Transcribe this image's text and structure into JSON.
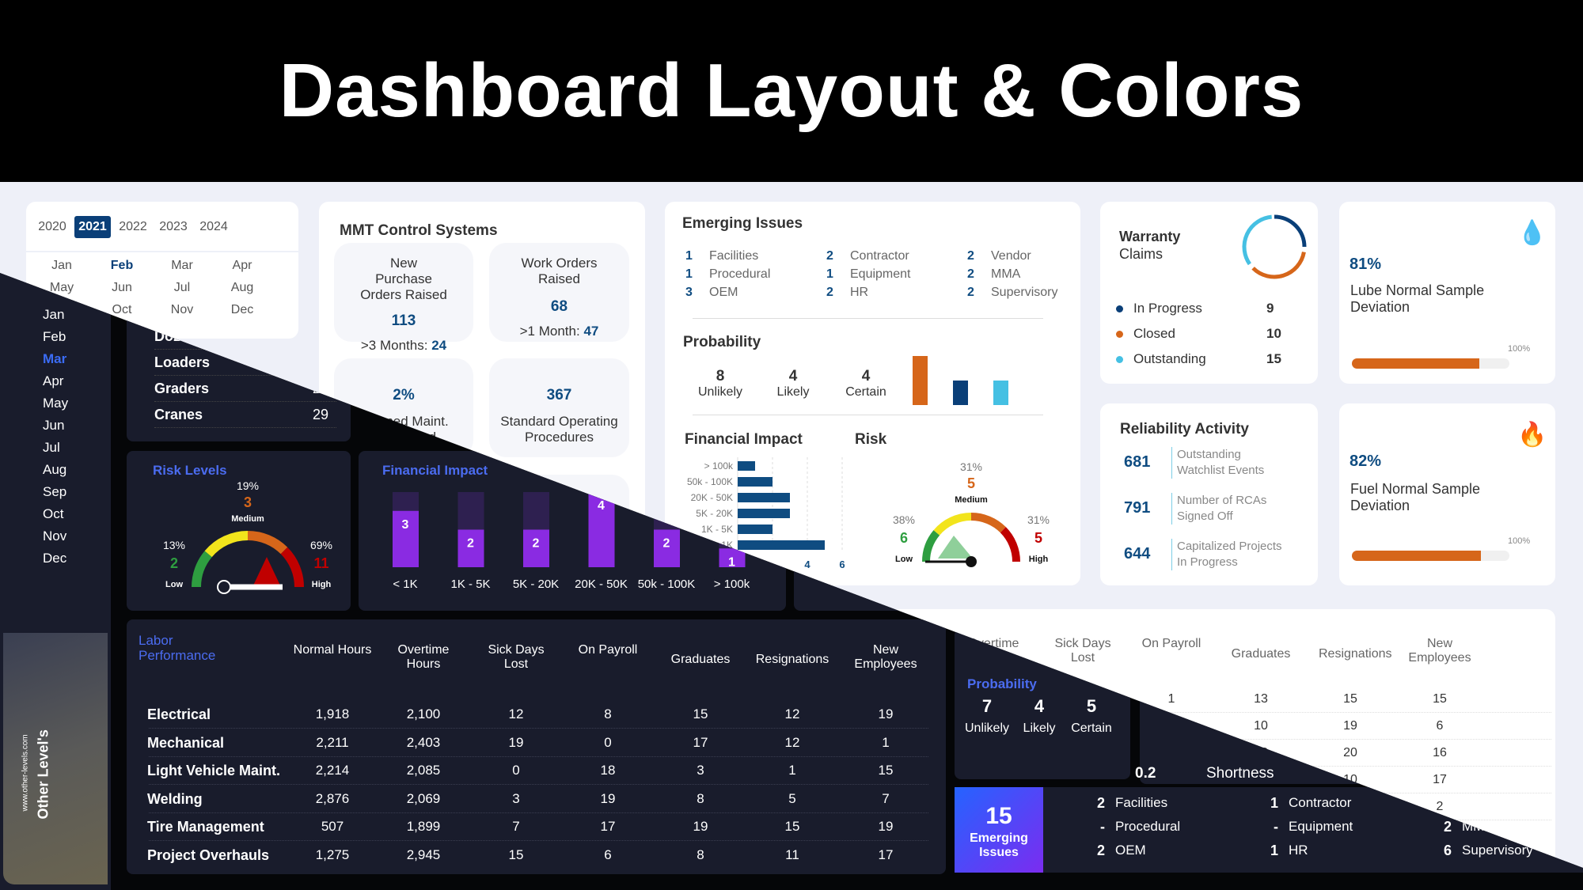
{
  "header": {
    "title": "Dashboard Layout & Colors"
  },
  "light": {
    "years": [
      "2020",
      "2021",
      "2022",
      "2023",
      "2024"
    ],
    "selected_year": "2021",
    "months": [
      "Jan",
      "Feb",
      "Mar",
      "Apr",
      "May",
      "Jun",
      "Jul",
      "Aug",
      "Sep",
      "Oct",
      "Nov",
      "Dec"
    ],
    "selected_month": "Feb",
    "mmt": {
      "title": "MMT Control Systems",
      "po": {
        "label": "New Purchase Orders Raised",
        "value": "113",
        "sub_label": ">3 Months:",
        "sub_value": "24"
      },
      "wo": {
        "label": "Work Orders Raised",
        "value": "68",
        "sub_label": ">1 Month:",
        "sub_value": "47"
      },
      "pm": {
        "value": "2%",
        "label": "Planned Maint. Completed"
      },
      "sop": {
        "value": "367",
        "label": "Standard Operating Procedures"
      }
    },
    "emerging": {
      "title": "Emerging Issues",
      "items": [
        {
          "n": "1",
          "label": "Facilities"
        },
        {
          "n": "1",
          "label": "Procedural"
        },
        {
          "n": "3",
          "label": "OEM"
        },
        {
          "n": "2",
          "label": "Contractor"
        },
        {
          "n": "1",
          "label": "Equipment"
        },
        {
          "n": "2",
          "label": "HR"
        },
        {
          "n": "2",
          "label": "Vendor"
        },
        {
          "n": "2",
          "label": "MMA"
        },
        {
          "n": "2",
          "label": "Supervisory"
        }
      ]
    },
    "probability": {
      "title": "Probability",
      "items": [
        {
          "n": "8",
          "label": "Unlikely",
          "color": "#d6661a"
        },
        {
          "n": "4",
          "label": "Likely",
          "color": "#0a3f78"
        },
        {
          "n": "4",
          "label": "Certain",
          "color": "#45c0e3"
        }
      ]
    },
    "financial": {
      "title": "Financial Impact",
      "categories": [
        "> 100k",
        "50k - 100K",
        "20K - 50K",
        "5K - 20K",
        "1K - 5K",
        "< 1K"
      ],
      "values": [
        1,
        2,
        3,
        3,
        2,
        5
      ],
      "xticks": [
        "4",
        "6"
      ],
      "color": "#0f4c81"
    },
    "risk": {
      "title": "Risk",
      "low": {
        "pct": "38%",
        "n": "6",
        "label": "Low"
      },
      "medium": {
        "pct": "31%",
        "n": "5",
        "label": "Medium"
      },
      "high": {
        "pct": "31%",
        "n": "5",
        "label": "High"
      }
    },
    "warranty": {
      "title": "Warranty",
      "subtitle": "Claims",
      "items": [
        {
          "label": "In Progress",
          "value": "9",
          "color": "#0a3f78"
        },
        {
          "label": "Closed",
          "value": "10",
          "color": "#d6661a"
        },
        {
          "label": "Outstanding",
          "value": "15",
          "color": "#45c0e3"
        }
      ]
    },
    "lube": {
      "value": "81%",
      "label": "Lube Normal Sample Deviation",
      "max": "100%",
      "fill": 0.81
    },
    "fuel": {
      "value": "82%",
      "label": "Fuel Normal Sample Deviation",
      "max": "100%",
      "fill": 0.82
    },
    "reliability": {
      "title": "Reliability Activity",
      "items": [
        {
          "n": "681",
          "label": "Outstanding Watchlist Events"
        },
        {
          "n": "791",
          "label": "Number of RCAs Signed Off"
        },
        {
          "n": "644",
          "label": "Capitalized Projects In Progress"
        }
      ]
    },
    "table": {
      "headers": [
        "Overtime Hours",
        "Sick Days Lost",
        "On Payroll",
        "Graduates",
        "Resignations",
        "New Employees"
      ],
      "rows": [
        [
          "",
          "",
          "1",
          "13",
          "15",
          "15"
        ],
        [
          "",
          "",
          "10",
          "10",
          "19",
          "6"
        ],
        [
          "",
          "",
          "12",
          "12",
          "20",
          "16"
        ],
        [
          "",
          "",
          "",
          "",
          "10",
          "17"
        ],
        [
          "",
          "",
          "",
          "",
          "",
          "2"
        ]
      ]
    }
  },
  "dark": {
    "months": [
      "Jan",
      "Feb",
      "Mar",
      "Apr",
      "May",
      "Jun",
      "Jul",
      "Aug",
      "Sep",
      "Oct",
      "Nov",
      "Dec"
    ],
    "selected_month": "Mar",
    "brand": "Other Level's",
    "brand_url": "www.other-levels.com",
    "equipment": [
      {
        "label": "Dozers",
        "value": ""
      },
      {
        "label": "Loaders",
        "value": ""
      },
      {
        "label": "Graders",
        "value": "29"
      },
      {
        "label": "Cranes",
        "value": "29"
      }
    ],
    "risk": {
      "title": "Risk Levels",
      "low": {
        "pct": "13%",
        "n": "2",
        "label": "Low"
      },
      "medium": {
        "pct": "19%",
        "n": "3",
        "label": "Medium"
      },
      "high": {
        "pct": "69%",
        "n": "11",
        "label": "High"
      }
    },
    "financial": {
      "title": "Financial Impact",
      "categories": [
        "< 1K",
        "1K - 5K",
        "5K - 20K",
        "20K - 50K",
        "50k - 100K",
        "> 100k"
      ],
      "values": [
        3,
        2,
        2,
        4,
        2,
        1
      ],
      "max": 4,
      "color": "#8a2be2",
      "track": "#2e2050"
    },
    "labor": {
      "title": "Labor Performance",
      "headers": [
        "Normal Hours",
        "Overtime Hours",
        "Sick Days Lost",
        "On Payroll",
        "Graduates",
        "Resignations",
        "New Employees"
      ],
      "rows": [
        [
          "Electrical",
          "1,918",
          "2,100",
          "12",
          "8",
          "15",
          "12",
          "19"
        ],
        [
          "Mechanical",
          "2,211",
          "2,403",
          "19",
          "0",
          "17",
          "12",
          "1"
        ],
        [
          "Light Vehicle Maint.",
          "2,214",
          "2,085",
          "0",
          "18",
          "3",
          "1",
          "15"
        ],
        [
          "Welding",
          "2,876",
          "2,069",
          "3",
          "19",
          "8",
          "5",
          "7"
        ],
        [
          "Tire Management",
          "507",
          "1,899",
          "7",
          "17",
          "19",
          "15",
          "19"
        ],
        [
          "Project Overhauls",
          "1,275",
          "2,945",
          "15",
          "6",
          "8",
          "11",
          "17"
        ]
      ]
    },
    "probability": {
      "title": "Probability",
      "items": [
        {
          "n": "7",
          "label": "Unlikely"
        },
        {
          "n": "4",
          "label": "Likely"
        },
        {
          "n": "5",
          "label": "Certain"
        }
      ]
    },
    "shortness": {
      "n": "0.2",
      "label": "Shortness"
    },
    "emerging": {
      "n": "15",
      "label": "Emerging Issues",
      "items": [
        {
          "n": "2",
          "label": "Facilities"
        },
        {
          "n": "-",
          "label": "Procedural"
        },
        {
          "n": "2",
          "label": "OEM"
        },
        {
          "n": "1",
          "label": "Contractor"
        },
        {
          "n": "-",
          "label": "Equipment"
        },
        {
          "n": "1",
          "label": "HR"
        },
        {
          "n": "",
          "label": ""
        },
        {
          "n": "2",
          "label": "MMA"
        },
        {
          "n": "6",
          "label": "Supervisory"
        }
      ]
    }
  }
}
